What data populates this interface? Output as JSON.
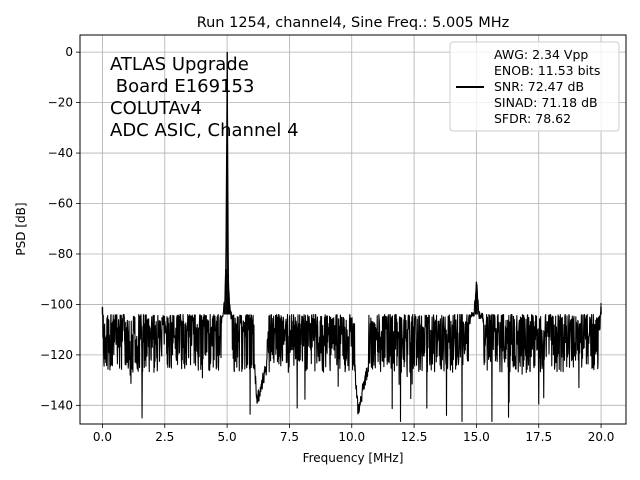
{
  "chart_data": {
    "type": "line",
    "title": "Run 1254, channel4, Sine Freq.: 5.005 MHz",
    "xlabel": "Frequency [MHz]",
    "ylabel": "PSD [dB]",
    "xlim": [
      -0.9,
      21.0
    ],
    "ylim": [
      -147.4,
      6.8
    ],
    "xticks": [
      0.0,
      2.5,
      5.0,
      7.5,
      10.0,
      12.5,
      15.0,
      17.5,
      20.0
    ],
    "xtick_labels": [
      "0.0",
      "2.5",
      "5.0",
      "7.5",
      "10.0",
      "12.5",
      "15.0",
      "17.5",
      "20.0"
    ],
    "yticks": [
      0,
      -20,
      -40,
      -60,
      -80,
      -100,
      -120,
      -140
    ],
    "ytick_labels": [
      "0",
      "−20",
      "−40",
      "−60",
      "−80",
      "−100",
      "−120",
      "−140"
    ],
    "grid": true,
    "legend_position": "top-right",
    "legend_entries": [
      "AWG: 2.34 Vpp",
      "ENOB: 11.53 bits",
      "SNR: 72.47 dB",
      "SINAD: 71.18 dB",
      "SFDR: 78.62"
    ],
    "annotation_lines": [
      "ATLAS Upgrade",
      " Board E169153",
      "COLUTAv4",
      "ADC ASIC, Channel 4"
    ],
    "line_color": "#000000",
    "series": [
      {
        "noise_floor_db": -112,
        "noise_band_db": [
          -127,
          -104
        ],
        "noise_min_db": -145,
        "x": [
          0.0,
          0.05,
          0.5,
          1.0,
          1.5,
          2.0,
          2.5,
          3.0,
          3.5,
          4.0,
          4.5,
          4.8,
          4.9,
          4.95,
          5.005,
          5.05,
          5.1,
          5.2,
          5.5,
          6.0,
          6.2,
          7.0,
          7.5,
          8.0,
          9.0,
          10.0,
          10.25,
          11.0,
          12.0,
          13.0,
          14.0,
          14.9,
          14.97,
          15.0,
          15.03,
          15.1,
          16.0,
          17.0,
          17.5,
          18.0,
          19.0,
          19.95,
          20.0
        ],
        "y": [
          -101,
          -118,
          -112,
          -115,
          -111,
          -113,
          -114,
          -112,
          -111,
          -113,
          -112,
          -105,
          -100,
          -86,
          0,
          -88,
          -101,
          -106,
          -112,
          -116,
          -141,
          -113,
          -115,
          -112,
          -113,
          -112,
          -145,
          -113,
          -111,
          -112,
          -114,
          -104,
          -96,
          -91,
          -95,
          -104,
          -113,
          -112,
          -114,
          -112,
          -113,
          -111,
          -101
        ]
      }
    ]
  }
}
